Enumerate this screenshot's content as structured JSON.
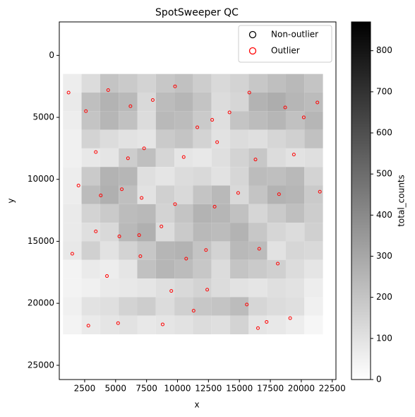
{
  "chart_data": {
    "type": "scatter",
    "title": "SpotSweeper QC",
    "x_label": "x",
    "y_label": "y",
    "colorbar_label": "total_counts",
    "x": [
      1500,
      3000,
      4500,
      6000,
      7500,
      9000,
      10500,
      12000,
      13500,
      15000,
      16500,
      18000,
      19500,
      21000
    ],
    "y": [
      2250,
      3750,
      5250,
      6750,
      8250,
      9750,
      11250,
      12750,
      14250,
      15750,
      17250,
      18750,
      20250,
      21750
    ],
    "values": [
      [
        60,
        120,
        200,
        180,
        150,
        190,
        210,
        170,
        130,
        150,
        190,
        220,
        240,
        200
      ],
      [
        70,
        220,
        260,
        240,
        130,
        230,
        250,
        200,
        120,
        140,
        260,
        280,
        250,
        230
      ],
      [
        60,
        200,
        250,
        210,
        120,
        240,
        230,
        180,
        110,
        200,
        230,
        250,
        210,
        250
      ],
      [
        50,
        150,
        120,
        100,
        90,
        180,
        200,
        150,
        100,
        120,
        110,
        140,
        160,
        210
      ],
      [
        50,
        80,
        90,
        170,
        220,
        140,
        90,
        80,
        110,
        150,
        190,
        120,
        100,
        110
      ],
      [
        60,
        180,
        260,
        250,
        110,
        90,
        120,
        130,
        100,
        140,
        230,
        220,
        240,
        150
      ],
      [
        60,
        230,
        270,
        220,
        100,
        160,
        130,
        200,
        240,
        130,
        200,
        260,
        250,
        180
      ],
      [
        70,
        150,
        180,
        230,
        240,
        150,
        200,
        260,
        250,
        210,
        140,
        180,
        220,
        170
      ],
      [
        70,
        110,
        130,
        240,
        270,
        120,
        180,
        240,
        230,
        260,
        190,
        140,
        120,
        160
      ],
      [
        80,
        160,
        100,
        150,
        190,
        250,
        260,
        200,
        150,
        240,
        230,
        100,
        140,
        130
      ],
      [
        40,
        70,
        60,
        90,
        210,
        250,
        230,
        190,
        120,
        200,
        180,
        160,
        120,
        90
      ],
      [
        40,
        50,
        70,
        80,
        90,
        110,
        130,
        150,
        120,
        100,
        90,
        110,
        100,
        60
      ],
      [
        50,
        100,
        110,
        150,
        170,
        120,
        160,
        190,
        200,
        230,
        140,
        120,
        110,
        50
      ],
      [
        40,
        70,
        90,
        100,
        80,
        90,
        100,
        120,
        110,
        150,
        90,
        80,
        60,
        30
      ]
    ],
    "cmap": [
      "#ffffff",
      "#000000"
    ],
    "clim": [
      0,
      870
    ],
    "cticks": [
      0,
      100,
      200,
      300,
      400,
      500,
      600,
      700,
      800
    ],
    "xlim": [
      450,
      22800
    ],
    "ylim": [
      26150,
      -2700
    ],
    "xticks": [
      2500,
      5000,
      7500,
      10000,
      12500,
      15000,
      17500,
      20000,
      22500
    ],
    "yticks": [
      0,
      5000,
      10000,
      15000,
      20000,
      25000
    ],
    "legend": "upper right",
    "series": [
      {
        "name": "Non-outlier",
        "color": "#000000"
      },
      {
        "name": "Outlier",
        "color": "#ff0000",
        "x": [
          1200,
          2600,
          4400,
          6200,
          8000,
          9800,
          11600,
          12800,
          14200,
          15800,
          18700,
          20200,
          21300,
          3400,
          6000,
          7300,
          10500,
          13200,
          16300,
          19400,
          2000,
          3800,
          5500,
          7100,
          9800,
          13000,
          14900,
          18200,
          21500,
          3400,
          5300,
          6900,
          8700,
          10700,
          12300,
          16600,
          18100,
          1500,
          4300,
          7000,
          9500,
          12400,
          15600,
          17200,
          19100,
          2800,
          5200,
          8800,
          11300,
          16500
        ],
        "y": [
          3000,
          4500,
          2800,
          4100,
          3600,
          2500,
          5800,
          5200,
          4600,
          3000,
          4200,
          5000,
          3800,
          7800,
          8300,
          7500,
          8200,
          7000,
          8400,
          8000,
          10500,
          11300,
          10800,
          11500,
          12000,
          12200,
          11100,
          11200,
          11000,
          14200,
          14600,
          14500,
          13800,
          16400,
          15700,
          15600,
          16800,
          16000,
          17800,
          16200,
          19000,
          18900,
          20100,
          21500,
          21200,
          21800,
          21600,
          21700,
          20600,
          22000
        ]
      }
    ]
  }
}
